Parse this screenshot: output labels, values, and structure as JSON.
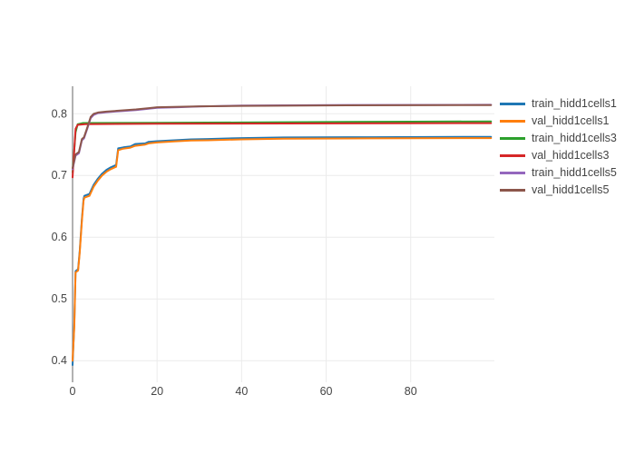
{
  "colors": {
    "background": "#ffffff",
    "grid": "#ebebeb",
    "zeroline": "#999999",
    "tick_label": "#444444"
  },
  "legend": {
    "items": [
      {
        "label": "train_hidd1cells1",
        "color": "#1f77b4"
      },
      {
        "label": "val_hidd1cells1",
        "color": "#ff7f0e"
      },
      {
        "label": "train_hidd1cells3",
        "color": "#2ca02c"
      },
      {
        "label": "val_hidd1cells3",
        "color": "#d62728"
      },
      {
        "label": "train_hidd1cells5",
        "color": "#9467bd"
      },
      {
        "label": "val_hidd1cells5",
        "color": "#8c564b"
      }
    ]
  },
  "chart_data": {
    "type": "line",
    "title": "",
    "xlabel": "",
    "ylabel": "",
    "xlim": [
      0,
      99.8
    ],
    "ylim": [
      0.365,
      0.8445
    ],
    "x_ticks": [
      0,
      20,
      40,
      60,
      80
    ],
    "x_tick_labels": [
      "0",
      "20",
      "40",
      "60",
      "80"
    ],
    "y_ticks": [
      0.4,
      0.5,
      0.6,
      0.7,
      0.8
    ],
    "y_tick_labels": [
      "0.4",
      "0.5",
      "0.6",
      "0.7",
      "0.8"
    ],
    "grid": true,
    "legend_position": "right",
    "line_width": 2,
    "series": [
      {
        "name": "train_hidd1cells1",
        "color": "#1f77b4",
        "points": [
          [
            0,
            0.393
          ],
          [
            0.4,
            0.46
          ],
          [
            0.7,
            0.545
          ],
          [
            1.3,
            0.548
          ],
          [
            1.7,
            0.578
          ],
          [
            2.2,
            0.63
          ],
          [
            2.6,
            0.662
          ],
          [
            2.8,
            0.667
          ],
          [
            4,
            0.67
          ],
          [
            5,
            0.685
          ],
          [
            6,
            0.695
          ],
          [
            7,
            0.703
          ],
          [
            8,
            0.709
          ],
          [
            9,
            0.713
          ],
          [
            10.3,
            0.717
          ],
          [
            10.8,
            0.744
          ],
          [
            12,
            0.7455
          ],
          [
            13.7,
            0.747
          ],
          [
            14.8,
            0.751
          ],
          [
            17.2,
            0.752
          ],
          [
            18,
            0.7545
          ],
          [
            20,
            0.7555
          ],
          [
            24,
            0.757
          ],
          [
            28,
            0.7585
          ],
          [
            32,
            0.759
          ],
          [
            40,
            0.7605
          ],
          [
            50,
            0.7615
          ],
          [
            70,
            0.762
          ],
          [
            99,
            0.7625
          ]
        ]
      },
      {
        "name": "val_hidd1cells1",
        "color": "#ff7f0e",
        "points": [
          [
            0,
            0.4
          ],
          [
            0.4,
            0.455
          ],
          [
            0.7,
            0.543
          ],
          [
            1.3,
            0.546
          ],
          [
            1.7,
            0.575
          ],
          [
            2.2,
            0.627
          ],
          [
            2.6,
            0.659
          ],
          [
            2.8,
            0.664
          ],
          [
            4,
            0.667
          ],
          [
            5,
            0.682
          ],
          [
            6,
            0.692
          ],
          [
            7,
            0.7
          ],
          [
            8,
            0.706
          ],
          [
            9,
            0.71
          ],
          [
            10.3,
            0.714
          ],
          [
            10.8,
            0.741
          ],
          [
            12,
            0.7435
          ],
          [
            13.7,
            0.745
          ],
          [
            14.8,
            0.748
          ],
          [
            17.2,
            0.75
          ],
          [
            18,
            0.752
          ],
          [
            20,
            0.7535
          ],
          [
            24,
            0.755
          ],
          [
            28,
            0.7565
          ],
          [
            32,
            0.757
          ],
          [
            40,
            0.7585
          ],
          [
            50,
            0.7595
          ],
          [
            70,
            0.76
          ],
          [
            99,
            0.7605
          ]
        ]
      },
      {
        "name": "train_hidd1cells3",
        "color": "#2ca02c",
        "points": [
          [
            0,
            0.705
          ],
          [
            0.7,
            0.77
          ],
          [
            1.2,
            0.7828
          ],
          [
            2.5,
            0.785
          ],
          [
            20,
            0.7853
          ],
          [
            40,
            0.7858
          ],
          [
            60,
            0.7866
          ],
          [
            80,
            0.7872
          ],
          [
            99,
            0.7876
          ]
        ]
      },
      {
        "name": "val_hidd1cells3",
        "color": "#d62728",
        "points": [
          [
            0,
            0.697
          ],
          [
            0.7,
            0.7755
          ],
          [
            1.2,
            0.782
          ],
          [
            3,
            0.7832
          ],
          [
            20,
            0.7838
          ],
          [
            50,
            0.7842
          ],
          [
            99,
            0.7848
          ]
        ]
      },
      {
        "name": "train_hidd1cells5",
        "color": "#9467bd",
        "points": [
          [
            0,
            0.71
          ],
          [
            0.7,
            0.732
          ],
          [
            1.5,
            0.736
          ],
          [
            2.2,
            0.757
          ],
          [
            2.7,
            0.76
          ],
          [
            3.5,
            0.776
          ],
          [
            4.3,
            0.793
          ],
          [
            5,
            0.798
          ],
          [
            6,
            0.801
          ],
          [
            8,
            0.8025
          ],
          [
            10,
            0.8035
          ],
          [
            12,
            0.8045
          ],
          [
            15,
            0.806
          ],
          [
            18,
            0.808
          ],
          [
            20,
            0.8095
          ],
          [
            25,
            0.8105
          ],
          [
            30,
            0.8118
          ],
          [
            40,
            0.8132
          ],
          [
            60,
            0.814
          ],
          [
            99,
            0.8145
          ]
        ]
      },
      {
        "name": "val_hidd1cells5",
        "color": "#8c564b",
        "points": [
          [
            0,
            0.712
          ],
          [
            0.7,
            0.734
          ],
          [
            1.5,
            0.738
          ],
          [
            2.2,
            0.759
          ],
          [
            2.7,
            0.762
          ],
          [
            3.5,
            0.778
          ],
          [
            4.3,
            0.795
          ],
          [
            5,
            0.8
          ],
          [
            6,
            0.802
          ],
          [
            8,
            0.8035
          ],
          [
            10,
            0.8045
          ],
          [
            12,
            0.8055
          ],
          [
            15,
            0.807
          ],
          [
            18,
            0.809
          ],
          [
            20,
            0.8105
          ],
          [
            25,
            0.8112
          ],
          [
            30,
            0.812
          ],
          [
            40,
            0.8128
          ],
          [
            60,
            0.8135
          ],
          [
            99,
            0.814
          ]
        ]
      }
    ]
  }
}
